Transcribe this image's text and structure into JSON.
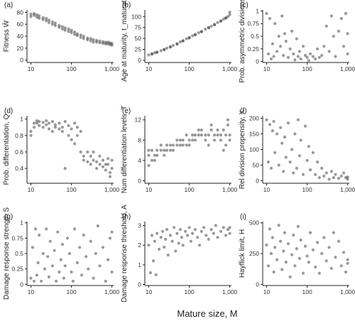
{
  "figure": {
    "shared_xlabel": "Mature size, M"
  },
  "style": {
    "point_color": "#333333",
    "axis_color": "#222222",
    "tick_text_color": "#333333"
  },
  "chart_data": [
    {
      "type": "scatter",
      "panel": "(a)",
      "ylabel": "Fitness W̄",
      "x_ticks": [
        "10",
        "100",
        "1,000"
      ],
      "xlim": [
        8,
        1100
      ],
      "log_x": true,
      "ylim": [
        -4,
        84
      ],
      "y_ticks": [
        0,
        20,
        40,
        60,
        80
      ],
      "x": [
        10,
        10,
        12,
        12,
        14,
        14,
        16,
        16,
        20,
        20,
        24,
        24,
        28,
        28,
        34,
        34,
        40,
        40,
        50,
        50,
        60,
        60,
        70,
        70,
        85,
        85,
        100,
        100,
        120,
        120,
        140,
        140,
        170,
        170,
        200,
        200,
        250,
        250,
        300,
        300,
        350,
        350,
        420,
        420,
        500,
        500,
        600,
        600,
        700,
        700,
        800,
        800,
        900,
        900,
        1000,
        1000
      ],
      "y": [
        77,
        73,
        78,
        75,
        76,
        72,
        74,
        70,
        71,
        68,
        70,
        66,
        67,
        63,
        64,
        60,
        62,
        58,
        58,
        55,
        56,
        52,
        54,
        50,
        52,
        48,
        50,
        46,
        47,
        43,
        44,
        41,
        42,
        38,
        40,
        36,
        37,
        34,
        36,
        32,
        34,
        30,
        33,
        30,
        32,
        29,
        31,
        28,
        30,
        27,
        30,
        27,
        29,
        26,
        28,
        25
      ]
    },
    {
      "type": "scatter",
      "panel": "(b)",
      "ylabel": "Age at maturity, t_maturation",
      "x_ticks": [
        "10",
        "100",
        "1,000"
      ],
      "xlim": [
        8,
        1100
      ],
      "log_x": true,
      "ylim": [
        -5,
        115
      ],
      "y_ticks": [
        0,
        25,
        50,
        75,
        100
      ],
      "x": [
        10,
        12,
        14,
        16,
        20,
        24,
        28,
        34,
        40,
        50,
        60,
        70,
        85,
        100,
        120,
        140,
        170,
        200,
        250,
        300,
        350,
        420,
        500,
        600,
        700,
        800,
        900,
        1000,
        12,
        16,
        24,
        34,
        50,
        70,
        100,
        140,
        200,
        300,
        420,
        600,
        800,
        1000
      ],
      "y": [
        12,
        15,
        17,
        19,
        22,
        25,
        28,
        31,
        34,
        38,
        42,
        45,
        49,
        52,
        56,
        59,
        63,
        66,
        71,
        75,
        78,
        82,
        86,
        90,
        94,
        97,
        100,
        104,
        14,
        18,
        24,
        30,
        37,
        44,
        51,
        58,
        65,
        74,
        81,
        89,
        96,
        110
      ]
    },
    {
      "type": "scatter",
      "panel": "(c)",
      "ylabel": "Prob. asymmetric divisions, P",
      "x_ticks": [
        "10",
        "100",
        "1,000"
      ],
      "xlim": [
        8,
        1100
      ],
      "log_x": true,
      "ylim": [
        -0.02,
        1.02
      ],
      "y_ticks": [
        0.0,
        0.25,
        0.5,
        0.75,
        1.0
      ],
      "x": [
        10,
        11,
        12,
        13,
        14,
        15,
        16,
        18,
        20,
        22,
        24,
        26,
        28,
        30,
        34,
        38,
        42,
        46,
        50,
        55,
        60,
        65,
        70,
        80,
        90,
        100,
        110,
        120,
        140,
        160,
        180,
        200,
        230,
        260,
        300,
        350,
        400,
        450,
        500,
        600,
        700,
        800,
        900,
        1000,
        1000
      ],
      "y": [
        0.95,
        0.15,
        0.85,
        0.05,
        0.35,
        0.1,
        0.75,
        0.2,
        0.5,
        0.3,
        0.9,
        0.12,
        0.55,
        0.4,
        0.08,
        0.25,
        0.6,
        0.15,
        0.03,
        0.45,
        0.1,
        0.2,
        0.05,
        0.3,
        0.12,
        0.08,
        0.02,
        0.15,
        0.1,
        0.05,
        0.25,
        0.08,
        0.12,
        0.3,
        0.7,
        0.2,
        0.9,
        0.5,
        0.1,
        0.6,
        0.85,
        0.3,
        0.95,
        0.15,
        0.55
      ]
    },
    {
      "type": "scatter",
      "panel": "(d)",
      "ylabel": "Prob. differentiation, Q",
      "x_ticks": [
        "10",
        "100",
        "1,000"
      ],
      "xlim": [
        8,
        1100
      ],
      "log_x": true,
      "ylim": [
        0.22,
        1.04
      ],
      "y_ticks": [
        0.4,
        0.6,
        0.8,
        1.0
      ],
      "x": [
        10,
        10,
        12,
        12,
        14,
        14,
        16,
        16,
        20,
        20,
        24,
        24,
        28,
        28,
        34,
        34,
        40,
        40,
        50,
        50,
        60,
        60,
        70,
        70,
        85,
        85,
        100,
        100,
        120,
        120,
        140,
        140,
        170,
        170,
        200,
        200,
        250,
        250,
        300,
        300,
        350,
        350,
        420,
        420,
        500,
        500,
        600,
        600,
        700,
        700,
        800,
        800,
        900,
        900,
        1000,
        1000
      ],
      "y": [
        0.85,
        0.8,
        0.95,
        0.9,
        0.98,
        0.95,
        0.97,
        0.92,
        0.96,
        0.9,
        0.98,
        0.93,
        0.95,
        0.88,
        0.97,
        0.85,
        0.93,
        0.9,
        0.95,
        0.88,
        0.9,
        0.85,
        0.97,
        0.4,
        0.92,
        0.8,
        0.88,
        0.75,
        0.95,
        0.7,
        0.9,
        0.8,
        0.85,
        0.6,
        0.55,
        0.5,
        0.6,
        0.48,
        0.55,
        0.45,
        0.6,
        0.5,
        0.48,
        0.4,
        0.55,
        0.45,
        0.5,
        0.42,
        0.45,
        0.38,
        0.52,
        0.45,
        0.35,
        0.3,
        0.5,
        0.4
      ]
    },
    {
      "type": "scatter",
      "panel": "(e)",
      "ylabel": "Num differentiation levels, T",
      "x_ticks": [
        "10",
        "100",
        "1,000"
      ],
      "xlim": [
        8,
        1100
      ],
      "log_x": true,
      "ylim": [
        -0.5,
        12.8
      ],
      "y_ticks": [
        0,
        4,
        8,
        12
      ],
      "x": [
        10,
        10,
        10,
        12,
        12,
        14,
        14,
        16,
        16,
        20,
        20,
        24,
        24,
        28,
        28,
        34,
        34,
        40,
        40,
        50,
        50,
        60,
        60,
        70,
        70,
        85,
        85,
        100,
        100,
        120,
        120,
        140,
        140,
        170,
        170,
        200,
        200,
        250,
        250,
        300,
        300,
        350,
        350,
        420,
        420,
        500,
        500,
        600,
        600,
        700,
        700,
        800,
        800,
        900,
        900,
        1000,
        1000
      ],
      "y": [
        3,
        5,
        6,
        4,
        6,
        4,
        5,
        5,
        6,
        6,
        7,
        5,
        6,
        6,
        7,
        6,
        7,
        6,
        7,
        7,
        8,
        7,
        8,
        7,
        8,
        7,
        9,
        7,
        8,
        8,
        9,
        8,
        9,
        9,
        10,
        9,
        10,
        8,
        9,
        7,
        9,
        10,
        11,
        8,
        9,
        9,
        10,
        8,
        9,
        6,
        10,
        7,
        9,
        11,
        12,
        8,
        9
      ]
    },
    {
      "type": "scatter",
      "panel": "(f)",
      "ylabel": "Rel division propensity, X",
      "x_ticks": [
        "10",
        "100",
        "1,000"
      ],
      "xlim": [
        8,
        1100
      ],
      "log_x": true,
      "ylim": [
        -8,
        208
      ],
      "y_ticks": [
        0,
        50,
        100,
        150,
        200
      ],
      "x": [
        10,
        11,
        12,
        13,
        14,
        15,
        16,
        18,
        20,
        22,
        24,
        26,
        28,
        30,
        34,
        38,
        42,
        46,
        50,
        55,
        60,
        65,
        70,
        80,
        90,
        100,
        110,
        120,
        140,
        160,
        180,
        200,
        230,
        260,
        300,
        350,
        400,
        450,
        500,
        600,
        700,
        800,
        900,
        1000,
        1000
      ],
      "y": [
        195,
        60,
        180,
        40,
        160,
        190,
        90,
        150,
        50,
        170,
        120,
        30,
        140,
        75,
        185,
        60,
        100,
        25,
        150,
        40,
        195,
        80,
        130,
        20,
        175,
        65,
        110,
        35,
        90,
        20,
        60,
        10,
        40,
        15,
        25,
        5,
        30,
        10,
        20,
        8,
        15,
        25,
        10,
        5,
        12
      ]
    },
    {
      "type": "scatter",
      "panel": "(g)",
      "ylabel": "Damage response strength S",
      "x_ticks": [
        "10",
        "100",
        "1,000"
      ],
      "xlim": [
        8,
        1100
      ],
      "log_x": true,
      "ylim": [
        -0.02,
        1.02
      ],
      "y_ticks": [
        0.0,
        0.25,
        0.5,
        0.75,
        1.0
      ],
      "x": [
        10,
        11,
        12,
        13,
        14,
        15,
        16,
        18,
        20,
        22,
        24,
        26,
        28,
        30,
        34,
        38,
        42,
        46,
        50,
        55,
        60,
        65,
        70,
        80,
        90,
        100,
        110,
        120,
        140,
        160,
        180,
        200,
        230,
        260,
        300,
        350,
        400,
        450,
        500,
        600,
        700,
        800,
        900,
        1000,
        1000
      ],
      "y": [
        0.1,
        0.6,
        0.05,
        0.9,
        0.15,
        0.35,
        0.8,
        0.05,
        0.5,
        0.25,
        0.9,
        0.45,
        0.12,
        0.7,
        0.3,
        0.55,
        0.05,
        0.85,
        0.2,
        0.4,
        0.65,
        0.1,
        0.3,
        0.75,
        0.5,
        0.2,
        0.05,
        0.9,
        0.35,
        0.6,
        0.15,
        0.8,
        0.45,
        0.25,
        0.7,
        0.1,
        0.5,
        0.95,
        0.3,
        0.6,
        0.05,
        0.4,
        0.75,
        0.2,
        0.85
      ]
    },
    {
      "type": "scatter",
      "panel": "(h)",
      "ylabel": "Damage response threshold, A",
      "x_ticks": [
        "10",
        "100",
        "1,000"
      ],
      "xlim": [
        8,
        1100
      ],
      "log_x": true,
      "ylim": [
        -0.05,
        3.2
      ],
      "y_ticks": [
        0,
        1,
        2,
        3
      ],
      "x": [
        10,
        11,
        12,
        13,
        14,
        15,
        16,
        18,
        20,
        22,
        24,
        26,
        28,
        30,
        34,
        38,
        42,
        46,
        50,
        55,
        60,
        65,
        70,
        80,
        90,
        100,
        110,
        120,
        140,
        160,
        180,
        200,
        230,
        260,
        300,
        350,
        400,
        450,
        500,
        600,
        700,
        800,
        900,
        1000,
        1000
      ],
      "y": [
        2.0,
        0.6,
        2.5,
        1.2,
        2.2,
        0.5,
        2.6,
        1.8,
        2.4,
        2.7,
        1.9,
        2.3,
        2.8,
        1.5,
        2.5,
        2.2,
        2.9,
        1.7,
        2.6,
        2.1,
        2.8,
        2.4,
        2.0,
        2.7,
        2.5,
        2.9,
        2.2,
        2.6,
        2.8,
        2.4,
        2.0,
        2.7,
        2.9,
        2.5,
        2.3,
        2.8,
        2.6,
        3.0,
        2.4,
        2.7,
        2.9,
        2.5,
        2.8,
        2.6,
        2.9
      ]
    },
    {
      "type": "scatter",
      "panel": "(i)",
      "ylabel": "Hayflick limit, H",
      "x_ticks": [
        "10",
        "100",
        "1,000"
      ],
      "xlim": [
        8,
        1100
      ],
      "log_x": true,
      "ylim": [
        -10,
        510
      ],
      "y_ticks": [
        0,
        250,
        500
      ],
      "x": [
        10,
        11,
        12,
        13,
        14,
        15,
        16,
        18,
        20,
        22,
        24,
        26,
        28,
        30,
        34,
        38,
        42,
        46,
        50,
        55,
        60,
        65,
        70,
        80,
        90,
        100,
        110,
        120,
        140,
        160,
        180,
        200,
        230,
        260,
        300,
        350,
        400,
        450,
        500,
        600,
        700,
        800,
        900,
        1000,
        1000
      ],
      "y": [
        320,
        150,
        450,
        250,
        380,
        100,
        300,
        200,
        480,
        350,
        120,
        270,
        420,
        180,
        330,
        60,
        240,
        400,
        150,
        290,
        470,
        210,
        360,
        90,
        310,
        230,
        180,
        420,
        280,
        140,
        340,
        90,
        250,
        380,
        190,
        300,
        130,
        420,
        220,
        350,
        150,
        260,
        100,
        200,
        170
      ]
    }
  ]
}
